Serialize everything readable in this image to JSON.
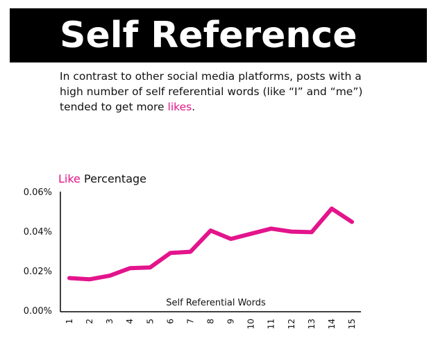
{
  "header": {
    "title": "Self Reference"
  },
  "intro": {
    "text_before": "In contrast to other social media platforms, posts with a high number of self referential words (like “I” and “me”) tended to get more ",
    "highlight": "likes",
    "text_after": "."
  },
  "colors": {
    "accent": "#e3148c",
    "title_bar": "#000000",
    "text": "#111111"
  },
  "chart_data": {
    "type": "line",
    "title_highlight": "Like",
    "title_rest": " Percentage",
    "xlabel": "Self Referential Words",
    "ylabel": "",
    "x": [
      "1",
      "2",
      "3",
      "4",
      "5",
      "6",
      "7",
      "8",
      "9",
      "10",
      "11",
      "12",
      "13",
      "14",
      "15"
    ],
    "series": [
      {
        "values": [
          0.0163,
          0.0157,
          0.0175,
          0.0213,
          0.0217,
          0.029,
          0.0296,
          0.0403,
          0.0361,
          0.0387,
          0.0413,
          0.0398,
          0.0395,
          0.0514,
          0.0447
        ]
      }
    ],
    "ylim": [
      0,
      0.06
    ],
    "yticks": [
      {
        "value": 0,
        "label": "0.00%"
      },
      {
        "value": 0.02,
        "label": "0.02%"
      },
      {
        "value": 0.04,
        "label": "0.04%"
      },
      {
        "value": 0.06,
        "label": "0.06%"
      }
    ],
    "grid": false
  }
}
